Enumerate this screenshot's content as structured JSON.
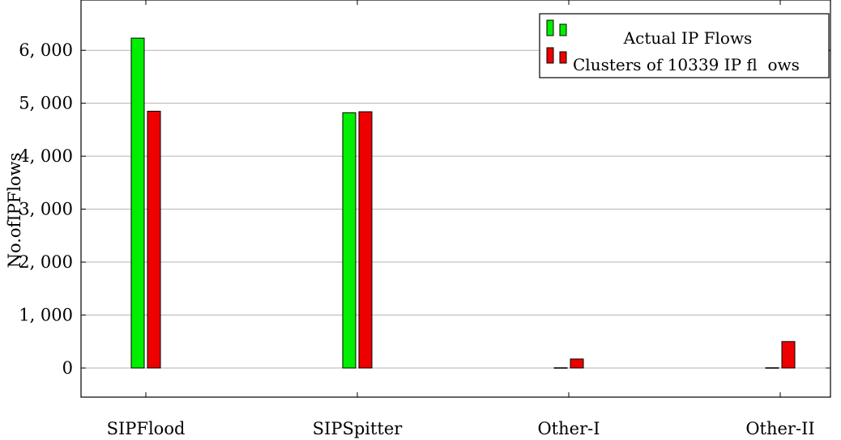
{
  "chart_data": {
    "type": "bar",
    "ylabel": "No.ofIPFlows",
    "xlabel": "",
    "categories": [
      "SIPFlood",
      "SIPSpitter",
      "Other-I",
      "Other-II"
    ],
    "y_ticks": [
      0,
      1000,
      2000,
      3000,
      4000,
      5000,
      6000
    ],
    "y_tick_labels": [
      "0",
      "1, 000",
      "2, 000",
      "3, 000",
      "4, 000",
      "5, 000",
      "6, 000"
    ],
    "ylim": [
      -550,
      6950
    ],
    "grid": "horizontal",
    "legend_position": "top-right",
    "series": [
      {
        "name": "Actual IP Flows",
        "color": "#00ee00",
        "values": [
          6230,
          4820,
          5,
          5
        ]
      },
      {
        "name": "Clusters of 10339 IP fl  ows",
        "color": "#ee0000",
        "values": [
          4850,
          4840,
          170,
          500
        ]
      }
    ]
  }
}
